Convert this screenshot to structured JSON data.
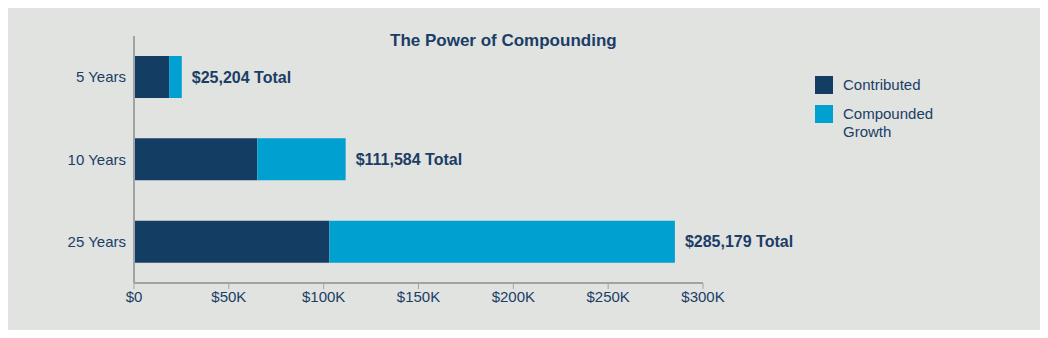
{
  "chart_data": {
    "type": "bar",
    "orientation": "horizontal",
    "stacked": true,
    "title": "The Power of Compounding",
    "categories": [
      "5 Years",
      "10 Years",
      "25 Years"
    ],
    "series": [
      {
        "name": "Contributed",
        "color": "#143d63",
        "values": [
          18500,
          65000,
          103000
        ]
      },
      {
        "name": "Compounded Growth",
        "color": "#00a0d1",
        "values": [
          6704,
          46584,
          182179
        ]
      }
    ],
    "total_labels": [
      "$25,204 Total",
      "$111,584 Total",
      "$285,179 Total"
    ],
    "xlim": [
      0,
      300000
    ],
    "xticks": [
      {
        "value": 0,
        "label": "$0"
      },
      {
        "value": 50000,
        "label": "$50K"
      },
      {
        "value": 100000,
        "label": "$100K"
      },
      {
        "value": 150000,
        "label": "$150K"
      },
      {
        "value": 200000,
        "label": "$200K"
      },
      {
        "value": 250000,
        "label": "$250K"
      },
      {
        "value": 300000,
        "label": "$300K"
      }
    ],
    "legend": "right",
    "grid": false
  }
}
